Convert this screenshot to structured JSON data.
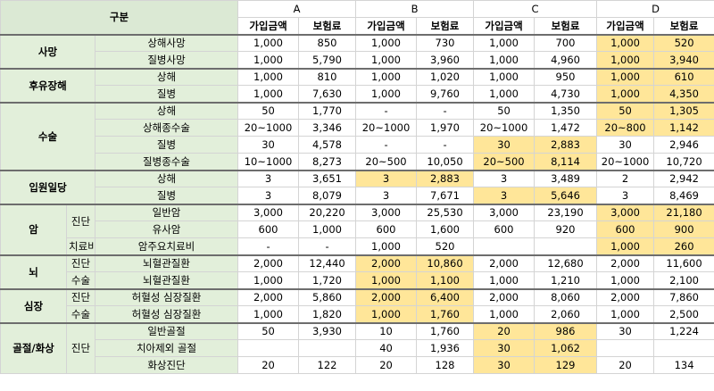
{
  "sheet": {
    "header": {
      "category": "구분",
      "groups": [
        "A",
        "B",
        "C",
        "D"
      ],
      "cols": [
        "가입금액",
        "보험료"
      ]
    },
    "sections": [
      {
        "label": "사망",
        "rows": [
          {
            "sub": "",
            "name": "상해사망",
            "vals": [
              "1,000",
              "850",
              "1,000",
              "730",
              "1,000",
              "700",
              "1,000",
              "520"
            ],
            "hl": [
              false,
              false,
              false,
              false,
              false,
              false,
              true,
              true
            ]
          },
          {
            "sub": "",
            "name": "질병사망",
            "vals": [
              "1,000",
              "5,790",
              "1,000",
              "3,960",
              "1,000",
              "4,960",
              "1,000",
              "3,940"
            ],
            "hl": [
              false,
              false,
              false,
              false,
              false,
              false,
              true,
              true
            ]
          }
        ]
      },
      {
        "label": "후유장해",
        "rows": [
          {
            "sub": "",
            "name": "상해",
            "vals": [
              "1,000",
              "810",
              "1,000",
              "1,020",
              "1,000",
              "950",
              "1,000",
              "610"
            ],
            "hl": [
              false,
              false,
              false,
              false,
              false,
              false,
              true,
              true
            ]
          },
          {
            "sub": "",
            "name": "질병",
            "vals": [
              "1,000",
              "7,630",
              "1,000",
              "9,760",
              "1,000",
              "4,730",
              "1,000",
              "4,350"
            ],
            "hl": [
              false,
              false,
              false,
              false,
              false,
              false,
              true,
              true
            ]
          }
        ]
      },
      {
        "label": "수술",
        "rows": [
          {
            "sub": "",
            "name": "상해",
            "vals": [
              "50",
              "1,770",
              "-",
              "-",
              "50",
              "1,350",
              "50",
              "1,305"
            ],
            "hl": [
              false,
              false,
              false,
              false,
              false,
              false,
              true,
              true
            ]
          },
          {
            "sub": "",
            "name": "상해종수술",
            "vals": [
              "20~1000",
              "3,346",
              "20~1000",
              "1,970",
              "20~1000",
              "1,472",
              "20~800",
              "1,142"
            ],
            "hl": [
              false,
              false,
              false,
              false,
              false,
              false,
              true,
              true
            ]
          },
          {
            "sub": "",
            "name": "질병",
            "vals": [
              "30",
              "4,578",
              "-",
              "-",
              "30",
              "2,883",
              "30",
              "2,946"
            ],
            "hl": [
              false,
              false,
              false,
              false,
              true,
              true,
              false,
              false
            ]
          },
          {
            "sub": "",
            "name": "질병종수술",
            "vals": [
              "10~1000",
              "8,273",
              "20~500",
              "10,050",
              "20~500",
              "8,114",
              "20~1000",
              "10,720"
            ],
            "hl": [
              false,
              false,
              false,
              false,
              true,
              true,
              false,
              false
            ]
          }
        ]
      },
      {
        "label": "입원일당",
        "rows": [
          {
            "sub": "",
            "name": "상해",
            "vals": [
              "3",
              "3,651",
              "3",
              "2,883",
              "3",
              "3,489",
              "2",
              "2,942"
            ],
            "hl": [
              false,
              false,
              true,
              true,
              false,
              false,
              false,
              false
            ]
          },
          {
            "sub": "",
            "name": "질병",
            "vals": [
              "3",
              "8,079",
              "3",
              "7,671",
              "3",
              "5,646",
              "3",
              "8,469"
            ],
            "hl": [
              false,
              false,
              false,
              false,
              true,
              true,
              false,
              false
            ]
          }
        ]
      },
      {
        "label": "암",
        "rows": [
          {
            "sub": "진단",
            "subspan": 2,
            "name": "일반암",
            "vals": [
              "3,000",
              "20,220",
              "3,000",
              "25,530",
              "3,000",
              "23,190",
              "3,000",
              "21,180"
            ],
            "hl": [
              false,
              false,
              false,
              false,
              false,
              false,
              true,
              true
            ]
          },
          {
            "name": "유사암",
            "vals": [
              "600",
              "1,000",
              "600",
              "1,600",
              "600",
              "920",
              "600",
              "900"
            ],
            "hl": [
              false,
              false,
              false,
              false,
              false,
              false,
              true,
              true
            ]
          },
          {
            "sub": "치료비",
            "subspan": 1,
            "name": "암주요치료비",
            "vals": [
              "-",
              "-",
              "1,000",
              "520",
              "",
              "",
              "1,000",
              "260"
            ],
            "hl": [
              false,
              false,
              false,
              false,
              false,
              false,
              true,
              true
            ]
          }
        ]
      },
      {
        "label": "뇌",
        "rows": [
          {
            "sub": "진단",
            "subspan": 1,
            "name": "뇌혈관질환",
            "vals": [
              "2,000",
              "12,440",
              "2,000",
              "10,860",
              "2,000",
              "12,680",
              "2,000",
              "11,600"
            ],
            "hl": [
              false,
              false,
              true,
              true,
              false,
              false,
              false,
              false
            ]
          },
          {
            "sub": "수술",
            "subspan": 1,
            "name": "뇌혈관질환",
            "vals": [
              "1,000",
              "1,720",
              "1,000",
              "1,100",
              "1,000",
              "1,210",
              "1,000",
              "2,100"
            ],
            "hl": [
              false,
              false,
              true,
              true,
              false,
              false,
              false,
              false
            ]
          }
        ]
      },
      {
        "label": "심장",
        "rows": [
          {
            "sub": "진단",
            "subspan": 1,
            "name": "허혈성 심장질환",
            "vals": [
              "2,000",
              "5,860",
              "2,000",
              "6,400",
              "2,000",
              "8,060",
              "2,000",
              "7,860"
            ],
            "hl": [
              false,
              false,
              true,
              true,
              false,
              false,
              false,
              false
            ]
          },
          {
            "sub": "수술",
            "subspan": 1,
            "name": "허혈성 심장질환",
            "vals": [
              "1,000",
              "1,820",
              "1,000",
              "1,760",
              "1,000",
              "2,060",
              "1,000",
              "2,500"
            ],
            "hl": [
              false,
              false,
              true,
              true,
              false,
              false,
              false,
              false
            ]
          }
        ]
      },
      {
        "label": "골절/화상",
        "rows": [
          {
            "sub": "진단",
            "subspan": 3,
            "name": "일반골절",
            "vals": [
              "50",
              "3,930",
              "10",
              "1,760",
              "20",
              "986",
              "30",
              "1,224"
            ],
            "hl": [
              false,
              false,
              false,
              false,
              true,
              true,
              false,
              false
            ]
          },
          {
            "name": "치아제외 골절",
            "vals": [
              "",
              "",
              "40",
              "1,936",
              "30",
              "1,062",
              "",
              ""
            ],
            "hl": [
              false,
              false,
              false,
              false,
              true,
              true,
              false,
              false
            ]
          },
          {
            "name": "화상진단",
            "vals": [
              "20",
              "122",
              "20",
              "128",
              "30",
              "129",
              "20",
              "134"
            ],
            "hl": [
              false,
              false,
              false,
              false,
              true,
              true,
              false,
              false
            ]
          }
        ]
      }
    ]
  }
}
